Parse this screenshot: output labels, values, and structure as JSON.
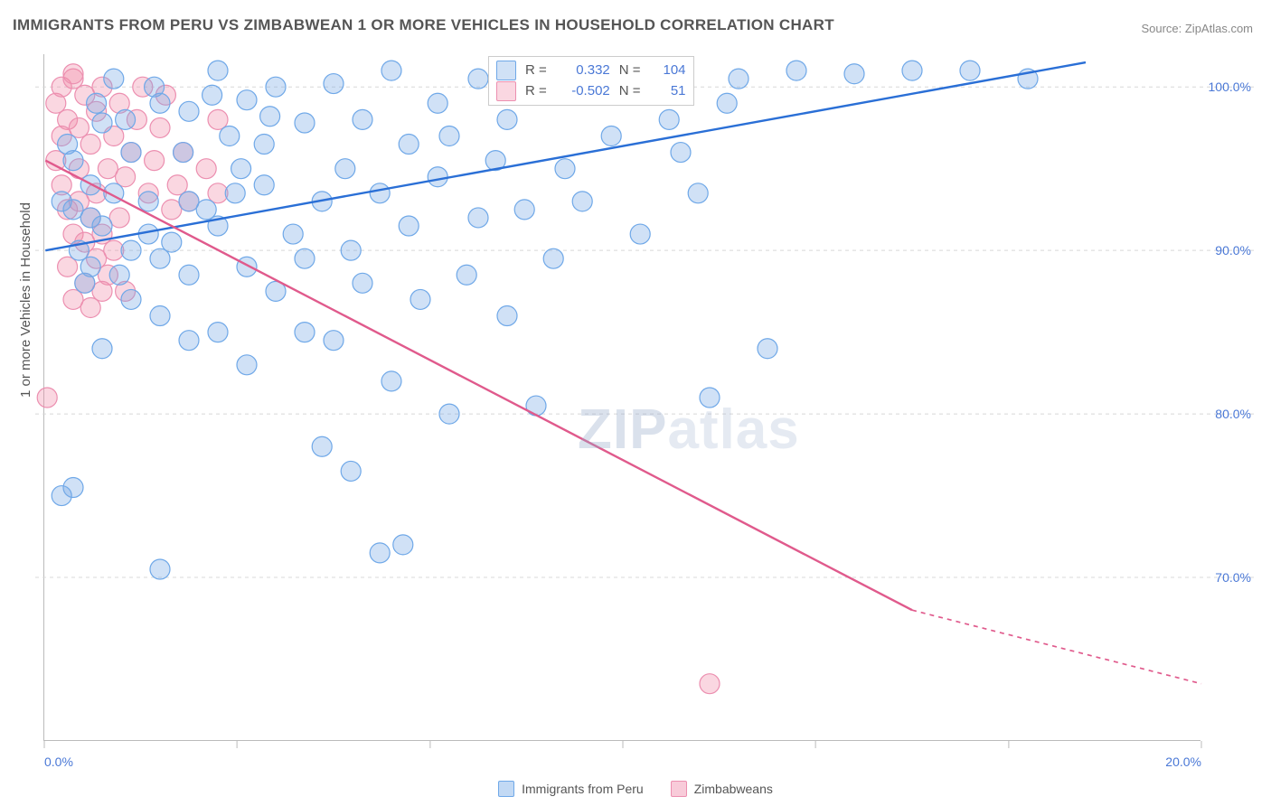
{
  "title": "IMMIGRANTS FROM PERU VS ZIMBABWEAN 1 OR MORE VEHICLES IN HOUSEHOLD CORRELATION CHART",
  "source": "Source: ZipAtlas.com",
  "y_axis_title": "1 or more Vehicles in Household",
  "watermark": {
    "zip": "ZIP",
    "rest": "atlas"
  },
  "chart": {
    "type": "scatter",
    "x_min": 0.0,
    "x_max": 20.0,
    "y_min": 60.0,
    "y_max": 102.0,
    "background_color": "#ffffff",
    "grid_color": "#d8d8d8",
    "axis_color": "#bbbbbb",
    "tick_color": "#4a78d6",
    "tick_fontsize": 14,
    "y_ticks": [
      70.0,
      80.0,
      90.0,
      100.0
    ],
    "y_tick_labels": [
      "70.0%",
      "80.0%",
      "90.0%",
      "100.0%"
    ],
    "x_ticks": [
      0.0,
      3.33,
      6.67,
      10.0,
      13.33,
      16.67,
      20.0
    ],
    "x_tick_labels": [
      "0.0%",
      "",
      "",
      "",
      "",
      "",
      "20.0%"
    ],
    "series": [
      {
        "name": "Immigrants from Peru",
        "color_fill": "rgba(120,170,230,0.35)",
        "color_stroke": "#6fa8e8",
        "line_color": "#2a6fd6",
        "line_width": 2.4,
        "marker_r": 11,
        "R": "0.332",
        "N": "104",
        "trend": {
          "x1": 0.02,
          "y1": 90.0,
          "x2": 18.0,
          "y2": 101.5
        },
        "points": [
          [
            0.3,
            93.0
          ],
          [
            0.5,
            92.5
          ],
          [
            0.5,
            95.5
          ],
          [
            0.8,
            92.0
          ],
          [
            1.0,
            91.5
          ],
          [
            0.8,
            94.0
          ],
          [
            1.2,
            93.5
          ],
          [
            1.5,
            96.0
          ],
          [
            1.8,
            93.0
          ],
          [
            2.0,
            99.0
          ],
          [
            1.0,
            97.8
          ],
          [
            1.2,
            100.5
          ],
          [
            2.5,
            98.5
          ],
          [
            2.5,
            93.0
          ],
          [
            3.0,
            101.0
          ],
          [
            3.2,
            97.0
          ],
          [
            3.5,
            99.2
          ],
          [
            3.8,
            94.0
          ],
          [
            4.0,
            100.0
          ],
          [
            4.5,
            97.8
          ],
          [
            5.0,
            100.2
          ],
          [
            5.2,
            95.0
          ],
          [
            5.5,
            98.0
          ],
          [
            6.0,
            101.0
          ],
          [
            6.3,
            96.5
          ],
          [
            6.8,
            99.0
          ],
          [
            7.0,
            97.0
          ],
          [
            7.5,
            100.5
          ],
          [
            8.0,
            98.0
          ],
          [
            8.5,
            101.0
          ],
          [
            9.0,
            95.0
          ],
          [
            9.5,
            100.0
          ],
          [
            10.0,
            101.0
          ],
          [
            11.0,
            96.0
          ],
          [
            12.0,
            100.5
          ],
          [
            13.0,
            101.0
          ],
          [
            14.0,
            100.8
          ],
          [
            15.0,
            101.0
          ],
          [
            16.0,
            101.0
          ],
          [
            17.0,
            100.5
          ],
          [
            12.5,
            84.0
          ],
          [
            11.5,
            81.0
          ],
          [
            0.7,
            88.0
          ],
          [
            1.5,
            87.0
          ],
          [
            2.0,
            86.0
          ],
          [
            2.5,
            88.5
          ],
          [
            3.0,
            85.0
          ],
          [
            3.5,
            89.0
          ],
          [
            4.0,
            87.5
          ],
          [
            4.5,
            89.5
          ],
          [
            5.0,
            84.5
          ],
          [
            5.5,
            88.0
          ],
          [
            6.0,
            82.0
          ],
          [
            6.5,
            87.0
          ],
          [
            7.0,
            80.0
          ],
          [
            7.5,
            92.0
          ],
          [
            8.0,
            86.0
          ],
          [
            8.5,
            80.5
          ],
          [
            1.0,
            84.0
          ],
          [
            2.0,
            89.5
          ],
          [
            2.5,
            84.5
          ],
          [
            3.0,
            91.5
          ],
          [
            3.5,
            83.0
          ],
          [
            4.5,
            85.0
          ],
          [
            4.8,
            78.0
          ],
          [
            5.3,
            76.5
          ],
          [
            0.5,
            75.5
          ],
          [
            0.3,
            75.0
          ],
          [
            2.0,
            70.5
          ],
          [
            5.8,
            71.5
          ],
          [
            6.2,
            72.0
          ],
          [
            1.5,
            90.0
          ],
          [
            0.6,
            90.0
          ],
          [
            0.8,
            89.0
          ],
          [
            1.3,
            88.5
          ],
          [
            1.8,
            91.0
          ],
          [
            2.2,
            90.5
          ],
          [
            2.8,
            92.5
          ],
          [
            3.3,
            93.5
          ],
          [
            3.8,
            96.5
          ],
          [
            4.3,
            91.0
          ],
          [
            4.8,
            93.0
          ],
          [
            5.3,
            90.0
          ],
          [
            5.8,
            93.5
          ],
          [
            6.3,
            91.5
          ],
          [
            6.8,
            94.5
          ],
          [
            7.3,
            88.5
          ],
          [
            7.8,
            95.5
          ],
          [
            8.3,
            92.5
          ],
          [
            8.8,
            89.5
          ],
          [
            9.3,
            93.0
          ],
          [
            9.8,
            97.0
          ],
          [
            10.3,
            91.0
          ],
          [
            10.8,
            98.0
          ],
          [
            11.3,
            93.5
          ],
          [
            11.8,
            99.0
          ],
          [
            0.4,
            96.5
          ],
          [
            0.9,
            99.0
          ],
          [
            1.4,
            98.0
          ],
          [
            1.9,
            100.0
          ],
          [
            2.4,
            96.0
          ],
          [
            2.9,
            99.5
          ],
          [
            3.4,
            95.0
          ],
          [
            3.9,
            98.2
          ]
        ]
      },
      {
        "name": "Zimbabweans",
        "color_fill": "rgba(240,140,170,0.35)",
        "color_stroke": "#ec8fb0",
        "line_color": "#e05a8c",
        "line_width": 2.4,
        "marker_r": 11,
        "R": "-0.502",
        "N": "51",
        "trend": {
          "x1": 0.02,
          "y1": 95.5,
          "x2": 15.0,
          "y2": 68.0
        },
        "trend_cont": {
          "x1": 15.0,
          "y1": 68.0,
          "x2": 20.0,
          "y2": 63.5
        },
        "points": [
          [
            0.2,
            99.0
          ],
          [
            0.3,
            100.0
          ],
          [
            0.4,
            98.0
          ],
          [
            0.5,
            100.5
          ],
          [
            0.6,
            97.5
          ],
          [
            0.7,
            99.5
          ],
          [
            0.8,
            96.5
          ],
          [
            0.9,
            98.5
          ],
          [
            1.0,
            100.0
          ],
          [
            1.1,
            95.0
          ],
          [
            1.2,
            97.0
          ],
          [
            1.3,
            99.0
          ],
          [
            1.4,
            94.5
          ],
          [
            1.5,
            96.0
          ],
          [
            1.6,
            98.0
          ],
          [
            1.7,
            100.0
          ],
          [
            1.8,
            93.5
          ],
          [
            1.9,
            95.5
          ],
          [
            2.0,
            97.5
          ],
          [
            2.1,
            99.5
          ],
          [
            2.2,
            92.5
          ],
          [
            2.3,
            94.0
          ],
          [
            2.4,
            96.0
          ],
          [
            0.3,
            94.0
          ],
          [
            0.4,
            92.5
          ],
          [
            0.5,
            91.0
          ],
          [
            0.6,
            93.0
          ],
          [
            0.7,
            90.5
          ],
          [
            0.8,
            92.0
          ],
          [
            0.9,
            89.5
          ],
          [
            1.0,
            91.0
          ],
          [
            1.1,
            88.5
          ],
          [
            1.2,
            90.0
          ],
          [
            1.3,
            92.0
          ],
          [
            1.4,
            87.5
          ],
          [
            0.2,
            95.5
          ],
          [
            0.3,
            97.0
          ],
          [
            0.4,
            89.0
          ],
          [
            0.5,
            87.0
          ],
          [
            0.6,
            95.0
          ],
          [
            0.7,
            88.0
          ],
          [
            0.8,
            86.5
          ],
          [
            0.9,
            93.5
          ],
          [
            1.0,
            87.5
          ],
          [
            2.5,
            93.0
          ],
          [
            2.8,
            95.0
          ],
          [
            3.0,
            93.5
          ],
          [
            3.0,
            98.0
          ],
          [
            0.05,
            81.0
          ],
          [
            11.5,
            63.5
          ],
          [
            0.5,
            100.8
          ]
        ]
      }
    ]
  },
  "legend": {
    "items": [
      {
        "label": "Immigrants from Peru",
        "fill": "rgba(120,170,230,0.45)",
        "stroke": "#6fa8e8"
      },
      {
        "label": "Zimbabweans",
        "fill": "rgba(240,140,170,0.45)",
        "stroke": "#ec8fb0"
      }
    ]
  },
  "stats_labels": {
    "R": "R =",
    "N": "N ="
  }
}
